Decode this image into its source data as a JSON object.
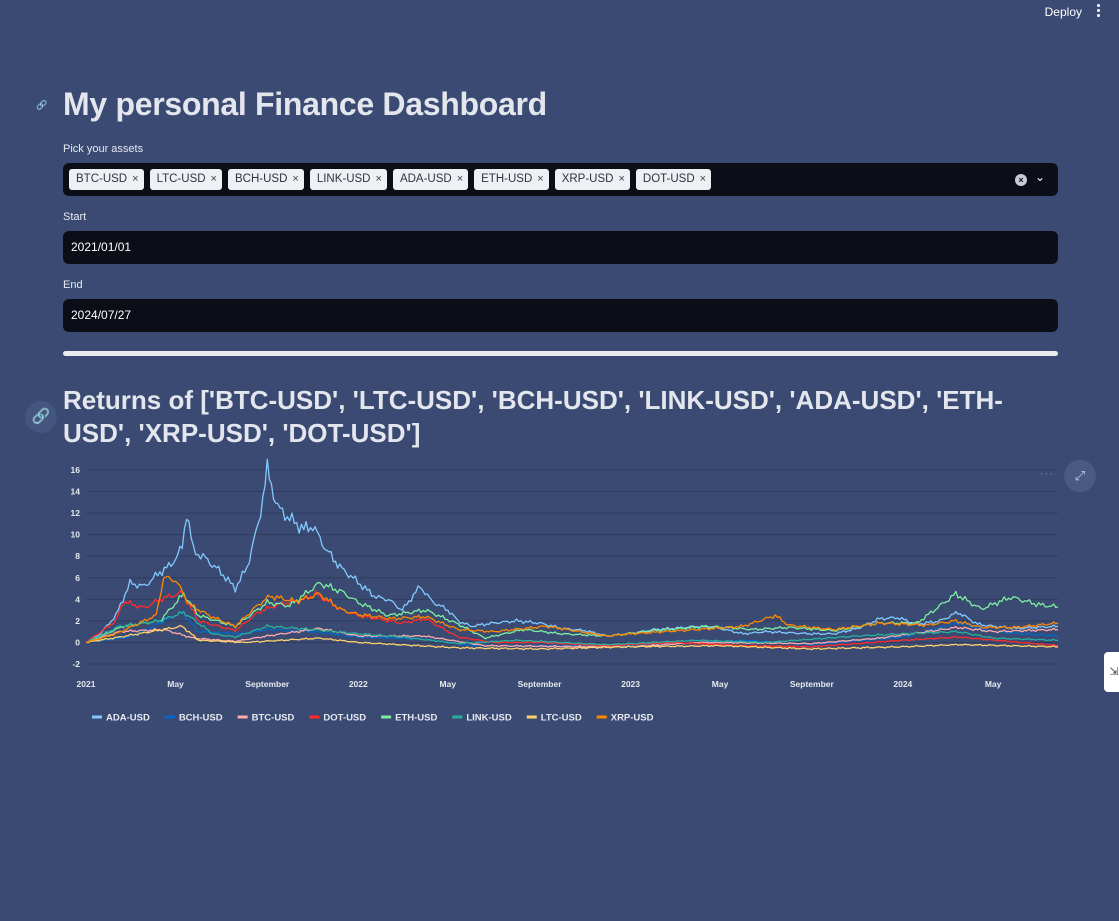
{
  "topbar": {
    "deploy_label": "Deploy"
  },
  "page": {
    "title": "My personal Finance Dashboard"
  },
  "assets": {
    "label": "Pick your assets",
    "selected": [
      "BTC-USD",
      "LTC-USD",
      "BCH-USD",
      "LINK-USD",
      "ADA-USD",
      "ETH-USD",
      "XRP-USD",
      "DOT-USD"
    ]
  },
  "start": {
    "label": "Start",
    "value": "2021/01/01"
  },
  "end": {
    "label": "End",
    "value": "2024/07/27"
  },
  "progress": {
    "value": 1.0
  },
  "chart": {
    "title": "Returns of ['BTC-USD', 'LTC-USD', 'BCH-USD', 'LINK-USD', 'ADA-USD', 'ETH-USD', 'XRP-USD', 'DOT-USD']"
  },
  "chart_data": {
    "type": "line",
    "title": "",
    "xlabel": "",
    "ylabel": "",
    "xlim": [
      "2021-01-01",
      "2024-07-27"
    ],
    "ylim": [
      -2,
      16
    ],
    "y_ticks": [
      -2,
      0,
      2,
      4,
      6,
      8,
      10,
      12,
      14,
      16
    ],
    "x_ticks": [
      {
        "date": "2021-01-01",
        "label": "2021"
      },
      {
        "date": "2021-05-01",
        "label": "May"
      },
      {
        "date": "2021-09-01",
        "label": "September"
      },
      {
        "date": "2022-01-01",
        "label": "2022"
      },
      {
        "date": "2022-05-01",
        "label": "May"
      },
      {
        "date": "2022-09-01",
        "label": "September"
      },
      {
        "date": "2023-01-01",
        "label": "2023"
      },
      {
        "date": "2023-05-01",
        "label": "May"
      },
      {
        "date": "2023-09-01",
        "label": "September"
      },
      {
        "date": "2024-01-01",
        "label": "2024"
      },
      {
        "date": "2024-05-01",
        "label": "May"
      }
    ],
    "grid": true,
    "legend_position": "bottom-left",
    "series": [
      {
        "name": "ADA-USD",
        "color": "#83c9ff",
        "points": [
          [
            "2021-01-01",
            0
          ],
          [
            "2021-01-20",
            0.8
          ],
          [
            "2021-02-10",
            2.5
          ],
          [
            "2021-03-01",
            5.5
          ],
          [
            "2021-03-20",
            5.2
          ],
          [
            "2021-04-10",
            6.5
          ],
          [
            "2021-04-25",
            7.2
          ],
          [
            "2021-05-10",
            8.8
          ],
          [
            "2021-05-16",
            12.2
          ],
          [
            "2021-05-25",
            8.5
          ],
          [
            "2021-06-10",
            7.8
          ],
          [
            "2021-07-01",
            6.5
          ],
          [
            "2021-07-20",
            5.0
          ],
          [
            "2021-08-05",
            7.0
          ],
          [
            "2021-08-20",
            11.0
          ],
          [
            "2021-09-01",
            16.0
          ],
          [
            "2021-09-15",
            12.5
          ],
          [
            "2021-10-01",
            11.5
          ],
          [
            "2021-10-20",
            10.5
          ],
          [
            "2021-11-01",
            10.8
          ],
          [
            "2021-11-20",
            8.5
          ],
          [
            "2021-12-10",
            6.8
          ],
          [
            "2021-12-25",
            6.0
          ],
          [
            "2022-01-10",
            5.0
          ],
          [
            "2022-01-25",
            4.2
          ],
          [
            "2022-02-10",
            4.0
          ],
          [
            "2022-03-01",
            3.0
          ],
          [
            "2022-03-25",
            5.2
          ],
          [
            "2022-04-10",
            3.8
          ],
          [
            "2022-05-01",
            3.0
          ],
          [
            "2022-05-15",
            2.0
          ],
          [
            "2022-06-01",
            1.5
          ],
          [
            "2022-07-01",
            1.8
          ],
          [
            "2022-08-01",
            2.0
          ],
          [
            "2022-09-01",
            1.8
          ],
          [
            "2022-10-01",
            1.3
          ],
          [
            "2022-11-01",
            1.1
          ],
          [
            "2022-12-01",
            0.6
          ],
          [
            "2023-01-01",
            0.8
          ],
          [
            "2023-02-01",
            1.2
          ],
          [
            "2023-03-01",
            1.3
          ],
          [
            "2023-04-01",
            1.5
          ],
          [
            "2023-05-01",
            1.3
          ],
          [
            "2023-06-01",
            0.8
          ],
          [
            "2023-07-01",
            1.0
          ],
          [
            "2023-08-01",
            0.9
          ],
          [
            "2023-09-01",
            0.8
          ],
          [
            "2023-10-01",
            0.8
          ],
          [
            "2023-11-01",
            1.3
          ],
          [
            "2023-12-01",
            2.2
          ],
          [
            "2023-12-25",
            2.3
          ],
          [
            "2024-01-20",
            1.7
          ],
          [
            "2024-02-20",
            2.0
          ],
          [
            "2024-03-15",
            2.8
          ],
          [
            "2024-04-10",
            1.7
          ],
          [
            "2024-05-01",
            1.5
          ],
          [
            "2024-06-01",
            1.3
          ],
          [
            "2024-07-27",
            1.5
          ]
        ]
      },
      {
        "name": "BCH-USD",
        "color": "#0068c9",
        "points": [
          [
            "2021-01-01",
            0
          ],
          [
            "2021-03-01",
            0.5
          ],
          [
            "2021-05-10",
            2.8
          ],
          [
            "2021-06-01",
            1.0
          ],
          [
            "2021-08-01",
            0.8
          ],
          [
            "2021-09-01",
            1.2
          ],
          [
            "2021-11-01",
            1.0
          ],
          [
            "2022-01-01",
            0.5
          ],
          [
            "2022-04-01",
            0.3
          ],
          [
            "2022-06-01",
            -0.3
          ],
          [
            "2022-09-01",
            -0.3
          ],
          [
            "2023-01-01",
            -0.3
          ],
          [
            "2023-06-01",
            0.2
          ],
          [
            "2023-09-01",
            -0.2
          ],
          [
            "2024-01-01",
            0.5
          ],
          [
            "2024-03-15",
            1.8
          ],
          [
            "2024-05-01",
            1.0
          ],
          [
            "2024-07-27",
            0.6
          ]
        ]
      },
      {
        "name": "BTC-USD",
        "color": "#ffabab",
        "points": [
          [
            "2021-01-01",
            0
          ],
          [
            "2021-02-15",
            1.0
          ],
          [
            "2021-04-15",
            1.2
          ],
          [
            "2021-05-25",
            0.4
          ],
          [
            "2021-07-20",
            0.1
          ],
          [
            "2021-09-01",
            0.6
          ],
          [
            "2021-11-10",
            1.3
          ],
          [
            "2022-01-01",
            0.6
          ],
          [
            "2022-03-30",
            0.6
          ],
          [
            "2022-06-20",
            -0.3
          ],
          [
            "2022-11-15",
            -0.4
          ],
          [
            "2023-01-01",
            -0.4
          ],
          [
            "2023-04-01",
            0.0
          ],
          [
            "2023-09-01",
            -0.1
          ],
          [
            "2023-12-01",
            0.4
          ],
          [
            "2024-03-15",
            1.4
          ],
          [
            "2024-05-01",
            1.0
          ],
          [
            "2024-07-27",
            1.2
          ]
        ]
      },
      {
        "name": "DOT-USD",
        "color": "#ff2b2b",
        "points": [
          [
            "2021-01-01",
            0
          ],
          [
            "2021-02-10",
            2.0
          ],
          [
            "2021-02-20",
            3.8
          ],
          [
            "2021-03-20",
            3.2
          ],
          [
            "2021-04-10",
            4.0
          ],
          [
            "2021-05-10",
            4.6
          ],
          [
            "2021-06-01",
            2.0
          ],
          [
            "2021-07-20",
            1.1
          ],
          [
            "2021-08-20",
            2.8
          ],
          [
            "2021-09-15",
            3.5
          ],
          [
            "2021-10-20",
            4.0
          ],
          [
            "2021-11-05",
            4.5
          ],
          [
            "2021-12-10",
            3.0
          ],
          [
            "2022-01-01",
            2.5
          ],
          [
            "2022-03-01",
            1.8
          ],
          [
            "2022-04-01",
            2.2
          ],
          [
            "2022-05-15",
            0.5
          ],
          [
            "2022-07-01",
            0.0
          ],
          [
            "2022-09-01",
            0.0
          ],
          [
            "2022-12-01",
            -0.3
          ],
          [
            "2023-03-01",
            0.0
          ],
          [
            "2023-06-01",
            -0.3
          ],
          [
            "2023-09-01",
            -0.4
          ],
          [
            "2024-01-01",
            0.2
          ],
          [
            "2024-03-15",
            0.5
          ],
          [
            "2024-07-27",
            -0.3
          ]
        ]
      },
      {
        "name": "ETH-USD",
        "color": "#7defa1",
        "points": [
          [
            "2021-01-01",
            0
          ],
          [
            "2021-02-20",
            1.5
          ],
          [
            "2021-04-10",
            2.0
          ],
          [
            "2021-05-12",
            4.5
          ],
          [
            "2021-06-01",
            2.5
          ],
          [
            "2021-07-20",
            1.5
          ],
          [
            "2021-09-01",
            3.7
          ],
          [
            "2021-10-01",
            3.4
          ],
          [
            "2021-11-10",
            5.5
          ],
          [
            "2021-12-10",
            4.7
          ],
          [
            "2022-01-01",
            3.7
          ],
          [
            "2022-02-10",
            2.5
          ],
          [
            "2022-04-01",
            3.0
          ],
          [
            "2022-05-15",
            1.7
          ],
          [
            "2022-06-20",
            0.4
          ],
          [
            "2022-08-10",
            1.2
          ],
          [
            "2022-10-01",
            0.8
          ],
          [
            "2022-12-01",
            0.6
          ],
          [
            "2023-02-01",
            1.1
          ],
          [
            "2023-04-15",
            1.5
          ],
          [
            "2023-06-15",
            1.2
          ],
          [
            "2023-08-01",
            1.4
          ],
          [
            "2023-10-01",
            1.1
          ],
          [
            "2023-12-01",
            1.8
          ],
          [
            "2024-01-20",
            1.8
          ],
          [
            "2024-03-12",
            4.5
          ],
          [
            "2024-04-15",
            3.1
          ],
          [
            "2024-05-25",
            4.2
          ],
          [
            "2024-07-01",
            3.5
          ],
          [
            "2024-07-27",
            3.3
          ]
        ]
      },
      {
        "name": "LINK-USD",
        "color": "#29b09d",
        "points": [
          [
            "2021-01-01",
            0
          ],
          [
            "2021-02-15",
            1.5
          ],
          [
            "2021-04-10",
            2.0
          ],
          [
            "2021-05-12",
            2.8
          ],
          [
            "2021-06-20",
            0.8
          ],
          [
            "2021-07-20",
            0.5
          ],
          [
            "2021-09-01",
            1.5
          ],
          [
            "2021-11-01",
            1.2
          ],
          [
            "2022-01-01",
            0.8
          ],
          [
            "2022-03-01",
            0.5
          ],
          [
            "2022-05-15",
            -0.1
          ],
          [
            "2022-08-01",
            0.2
          ],
          [
            "2022-12-01",
            -0.2
          ],
          [
            "2023-04-01",
            0.2
          ],
          [
            "2023-07-01",
            0.0
          ],
          [
            "2023-11-01",
            0.6
          ],
          [
            "2024-01-01",
            0.8
          ],
          [
            "2024-03-15",
            1.0
          ],
          [
            "2024-05-01",
            0.4
          ],
          [
            "2024-07-27",
            0.2
          ]
        ]
      },
      {
        "name": "LTC-USD",
        "color": "#ffd16a",
        "points": [
          [
            "2021-01-01",
            0
          ],
          [
            "2021-02-15",
            0.5
          ],
          [
            "2021-05-10",
            1.5
          ],
          [
            "2021-06-01",
            0.2
          ],
          [
            "2021-08-01",
            0.0
          ],
          [
            "2021-11-10",
            0.4
          ],
          [
            "2022-01-01",
            0.0
          ],
          [
            "2022-05-15",
            -0.5
          ],
          [
            "2022-09-01",
            -0.6
          ],
          [
            "2023-01-01",
            -0.4
          ],
          [
            "2023-05-01",
            -0.3
          ],
          [
            "2023-09-01",
            -0.6
          ],
          [
            "2024-01-01",
            -0.4
          ],
          [
            "2024-03-15",
            -0.2
          ],
          [
            "2024-07-27",
            -0.4
          ]
        ]
      },
      {
        "name": "XRP-USD",
        "color": "#ff8700",
        "points": [
          [
            "2021-01-01",
            0
          ],
          [
            "2021-02-10",
            0.8
          ],
          [
            "2021-04-05",
            2.5
          ],
          [
            "2021-04-15",
            6.0
          ],
          [
            "2021-05-01",
            5.8
          ],
          [
            "2021-05-20",
            3.5
          ],
          [
            "2021-06-15",
            2.5
          ],
          [
            "2021-07-20",
            1.5
          ],
          [
            "2021-08-20",
            3.5
          ],
          [
            "2021-09-05",
            4.3
          ],
          [
            "2021-10-10",
            3.8
          ],
          [
            "2021-11-10",
            4.5
          ],
          [
            "2021-12-10",
            3.0
          ],
          [
            "2022-01-01",
            2.6
          ],
          [
            "2022-02-15",
            2.2
          ],
          [
            "2022-04-01",
            2.4
          ],
          [
            "2022-05-15",
            1.2
          ],
          [
            "2022-07-01",
            1.0
          ],
          [
            "2022-09-10",
            1.5
          ],
          [
            "2022-12-01",
            0.6
          ],
          [
            "2023-01-01",
            0.8
          ],
          [
            "2023-04-01",
            1.2
          ],
          [
            "2023-06-01",
            1.5
          ],
          [
            "2023-07-14",
            2.5
          ],
          [
            "2023-08-01",
            1.6
          ],
          [
            "2023-10-01",
            1.2
          ],
          [
            "2023-12-01",
            1.8
          ],
          [
            "2024-02-01",
            1.6
          ],
          [
            "2024-03-12",
            2.0
          ],
          [
            "2024-04-15",
            1.4
          ],
          [
            "2024-06-01",
            1.4
          ],
          [
            "2024-07-27",
            1.8
          ]
        ]
      }
    ]
  }
}
